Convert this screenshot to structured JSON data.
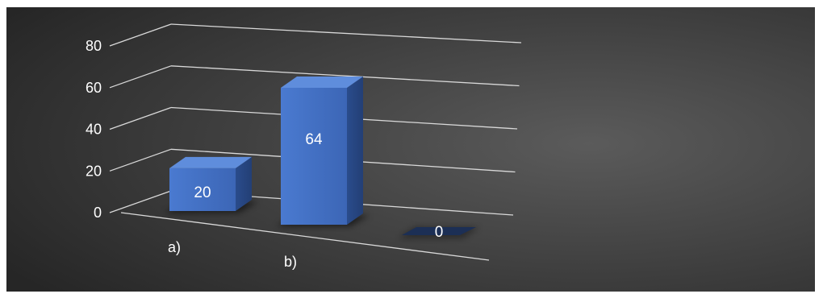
{
  "chart_data": {
    "type": "bar",
    "style": "3d-perspective",
    "categories": [
      "a)",
      "b)",
      ""
    ],
    "series": [
      {
        "values": [
          20,
          64,
          0
        ]
      }
    ],
    "data_labels": [
      "20",
      "64",
      "0"
    ],
    "y_ticks": [
      "0",
      "20",
      "40",
      "60",
      "80"
    ],
    "ylim": [
      0,
      80
    ],
    "title": "",
    "xlabel": "",
    "ylabel": "",
    "grid": true,
    "legend": "none",
    "colors": {
      "bar": "#4472c4",
      "bar_zero": "#1c2f55",
      "background_center": "#5b5b5b",
      "background_edge": "#262626",
      "gridline": "#d9d9d9",
      "text": "#ffffff"
    }
  }
}
